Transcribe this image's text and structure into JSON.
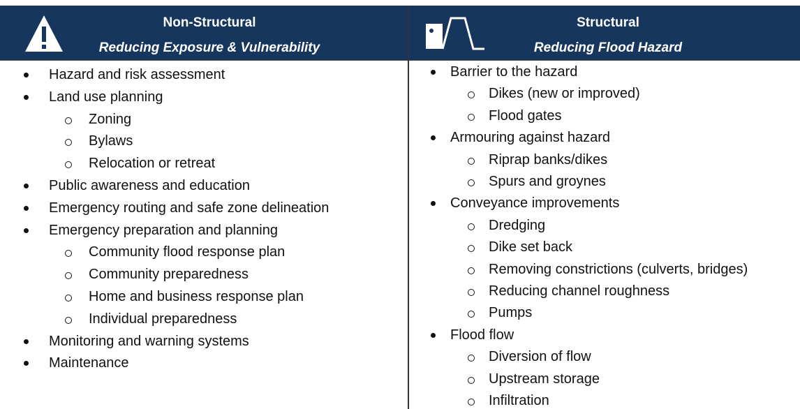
{
  "columns": [
    {
      "title": "Non-Structural",
      "subtitle": "Reducing Exposure & Vulnerability",
      "items": [
        {
          "text": "Hazard and risk assessment",
          "subitems": []
        },
        {
          "text": "Land use planning",
          "subitems": [
            "Zoning",
            "Bylaws",
            "Relocation or retreat"
          ]
        },
        {
          "text": "Public awareness and education",
          "subitems": []
        },
        {
          "text": "Emergency routing and safe zone delineation",
          "subitems": []
        },
        {
          "text": "Emergency preparation and planning",
          "subitems": [
            "Community flood response plan",
            "Community preparedness",
            "Home and business response plan",
            "Individual preparedness"
          ]
        },
        {
          "text": "Monitoring and warning systems",
          "subitems": []
        },
        {
          "text": "Maintenance",
          "subitems": []
        }
      ]
    },
    {
      "title": "Structural",
      "subtitle": "Reducing Flood Hazard",
      "items": [
        {
          "text": "Barrier to the hazard",
          "subitems": [
            "Dikes (new or improved)",
            "Flood gates"
          ]
        },
        {
          "text": "Armouring against hazard",
          "subitems": [
            "Riprap banks/dikes",
            "Spurs and groynes"
          ]
        },
        {
          "text": "Conveyance improvements",
          "subitems": [
            "Dredging",
            "Dike set back",
            "Removing constrictions (culverts, bridges)",
            "Reducing channel roughness",
            "Pumps"
          ]
        },
        {
          "text": "Flood flow",
          "subitems": [
            "Diversion of flow",
            "Upstream storage",
            "Infiltration"
          ]
        }
      ]
    }
  ]
}
